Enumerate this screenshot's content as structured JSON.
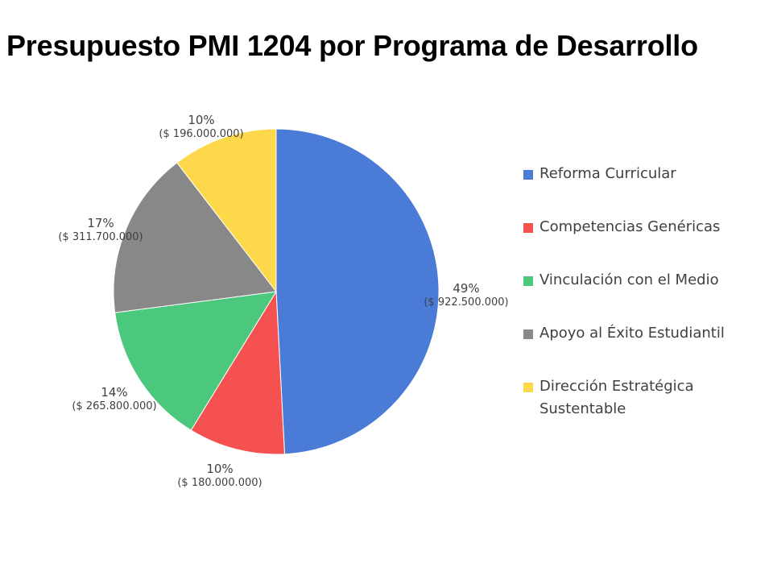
{
  "chart_data": {
    "type": "pie",
    "title": "Presupuesto PMI 1204 por Programa de Desarrollo",
    "categories": [
      "Reforma Curricular",
      "Competencias Genéricas",
      "Vinculación con el Medio",
      "Apoyo al Éxito Estudiantil",
      "Dirección Estratégica Sustentable"
    ],
    "values": [
      922500000,
      180000000,
      265800000,
      311700000,
      196000000
    ],
    "percent_labels": [
      "49%",
      "10%",
      "14%",
      "17%",
      "10%"
    ],
    "amount_labels": [
      "($ 922.500.000)",
      "($ 180.000.000)",
      "($ 265.800.000)",
      "($ 311.700.000)",
      "($ 196.000.000)"
    ],
    "colors": [
      "#4A7BD6",
      "#F65151",
      "#4BC87D",
      "#888888",
      "#FDD84B"
    ],
    "start": "12 o'clock, clockwise",
    "legend_position": "right"
  }
}
